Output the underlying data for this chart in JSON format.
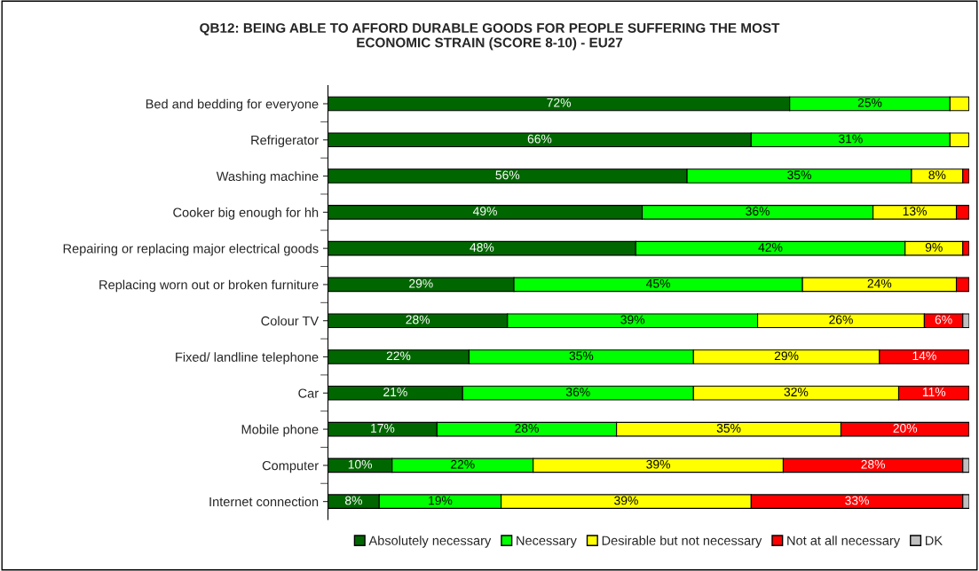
{
  "chart_data": {
    "type": "bar",
    "orientation": "horizontal",
    "stacked": true,
    "title": "QB12: BEING ABLE TO AFFORD DURABLE GOODS FOR PEOPLE SUFFERING THE MOST\nECONOMIC STRAIN (SCORE 8-10) - EU27",
    "categories": [
      "Bed and bedding for everyone",
      "Refrigerator",
      "Washing machine",
      "Cooker big enough for hh",
      "Repairing or replacing major electrical goods",
      "Replacing worn out or broken furniture",
      "Colour TV",
      "Fixed/ landline telephone",
      "Car",
      "Mobile phone",
      "Computer",
      "Internet connection"
    ],
    "series": [
      {
        "name": "Absolutely necessary",
        "color": "#006600",
        "values": [
          72,
          66,
          56,
          49,
          48,
          29,
          28,
          22,
          21,
          17,
          10,
          8
        ],
        "value_labels": [
          "72%",
          "66%",
          "56%",
          "49%",
          "48%",
          "29%",
          "28%",
          "22%",
          "21%",
          "17%",
          "10%",
          "8%"
        ]
      },
      {
        "name": "Necessary",
        "color": "#00ff00",
        "values": [
          25,
          31,
          35,
          36,
          42,
          45,
          39,
          35,
          36,
          28,
          22,
          19
        ],
        "value_labels": [
          "25%",
          "31%",
          "35%",
          "36%",
          "42%",
          "45%",
          "39%",
          "35%",
          "36%",
          "28%",
          "22%",
          "19%"
        ]
      },
      {
        "name": "Desirable but not necessary",
        "color": "#ffff00",
        "values": [
          3,
          3,
          8,
          13,
          9,
          24,
          26,
          29,
          32,
          35,
          39,
          39
        ],
        "value_labels": [
          null,
          null,
          "8%",
          "13%",
          "9%",
          "24%",
          "26%",
          "29%",
          "32%",
          "35%",
          "39%",
          "39%"
        ]
      },
      {
        "name": "Not at all necessary",
        "color": "#ff0000",
        "values": [
          null,
          null,
          1,
          2,
          1,
          2,
          6,
          14,
          11,
          20,
          28,
          33
        ],
        "value_labels": [
          null,
          null,
          null,
          null,
          null,
          null,
          "6%",
          "14%",
          "11%",
          "20%",
          "28%",
          "33%"
        ]
      },
      {
        "name": "DK",
        "color": "#c0c0c0",
        "values": [
          null,
          null,
          null,
          null,
          null,
          null,
          1,
          null,
          null,
          null,
          1,
          1
        ],
        "value_labels": [
          null,
          null,
          null,
          null,
          null,
          null,
          null,
          null,
          null,
          null,
          null,
          null
        ]
      }
    ],
    "xlim": [
      0,
      100
    ],
    "tick_labels": "y",
    "legend": "bottom"
  }
}
